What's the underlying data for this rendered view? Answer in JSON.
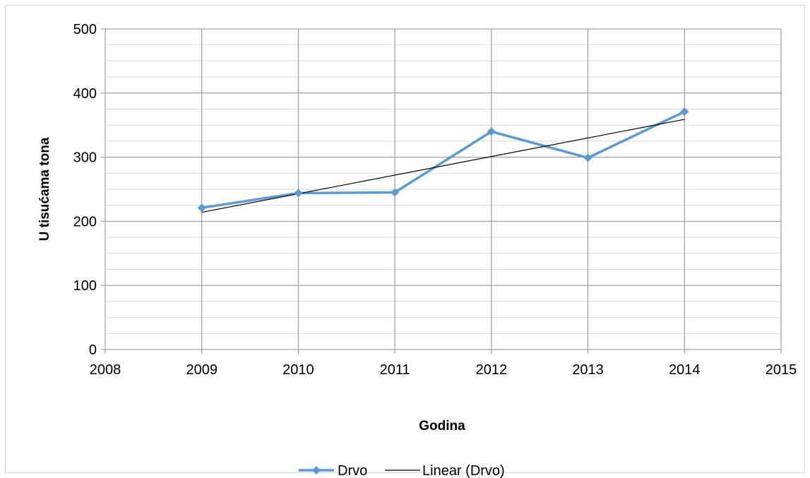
{
  "chart_data": {
    "type": "scatter",
    "xlabel": "Godina",
    "ylabel": "U tisućama tona",
    "xlim": [
      2008,
      2015
    ],
    "ylim": [
      0,
      500
    ],
    "x_ticks": [
      2008,
      2009,
      2010,
      2011,
      2012,
      2013,
      2014,
      2015
    ],
    "y_ticks": [
      0,
      100,
      200,
      300,
      400,
      500
    ],
    "y_minor_step": 25,
    "grid": true,
    "legend_position": "bottom",
    "series": [
      {
        "name": "Drvo",
        "style": "line-with-diamond-markers",
        "color": "#5b9bd5",
        "x": [
          2009,
          2010,
          2011,
          2012,
          2013,
          2014
        ],
        "y": [
          221,
          244,
          245,
          340,
          299,
          371
        ]
      },
      {
        "name": "Linear (Drvo)",
        "style": "trendline",
        "color": "#000000",
        "x": [
          2009,
          2014
        ],
        "y": [
          214,
          359
        ]
      }
    ]
  }
}
